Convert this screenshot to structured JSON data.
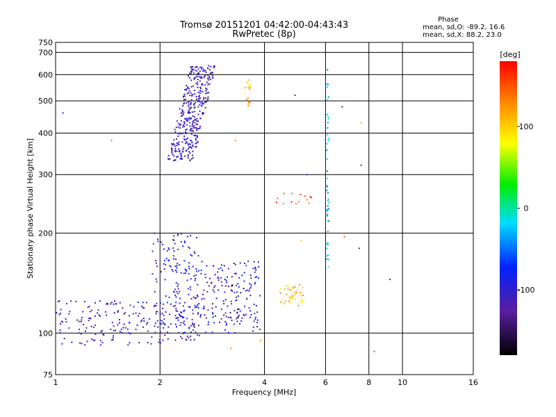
{
  "chart_data": {
    "type": "scatter",
    "title": "Tromsø 20151201 04:42:00-04:43:43",
    "subtitle": "RwPretec (8p)",
    "xlabel": "Frequency [MHz]",
    "ylabel": "Stationary phase Virtual Height [km]",
    "x_scale": "log",
    "y_scale": "log",
    "xlim": [
      1,
      16
    ],
    "ylim": [
      75,
      750
    ],
    "x_ticks": [
      "1",
      "2",
      "4",
      "6",
      "8",
      "10",
      "16"
    ],
    "y_ticks": [
      "75",
      "100",
      "200",
      "300",
      "400",
      "500",
      "600",
      "700"
    ],
    "grid": true,
    "stats": {
      "heading": "Phase",
      "line_o": "mean, sd,O: -89.2, 16.6",
      "line_x": "mean, sd,X:  88.2, 23.0"
    },
    "colorbar": {
      "label": "[deg]",
      "range": [
        -180,
        180
      ],
      "ticks": [
        "100",
        "0",
        "-100"
      ]
    },
    "clusters": [
      {
        "x": [
          2.1,
          2.9
        ],
        "y": [
          330,
          640
        ],
        "phase": -110,
        "n": 380,
        "shape": "blob"
      },
      {
        "x": [
          1.0,
          2.1
        ],
        "y": [
          92,
          125
        ],
        "phase": -105,
        "n": 160,
        "shape": "rect"
      },
      {
        "x": [
          1.9,
          2.6
        ],
        "y": [
          95,
          200
        ],
        "phase": -100,
        "n": 150,
        "shape": "rect"
      },
      {
        "x": [
          2.2,
          3.9
        ],
        "y": [
          100,
          165
        ],
        "phase": -95,
        "n": 200,
        "shape": "rect"
      },
      {
        "x": [
          3.0,
          3.7
        ],
        "y": [
          110,
          140
        ],
        "phase": -130,
        "n": 40,
        "shape": "rect"
      },
      {
        "x": [
          4.4,
          5.2
        ],
        "y": [
          120,
          140
        ],
        "phase": 110,
        "n": 40,
        "shape": "rect"
      },
      {
        "x": [
          3.5,
          3.65
        ],
        "y": [
          480,
          580
        ],
        "phase": 115,
        "n": 18,
        "shape": "rect"
      },
      {
        "x": [
          6.05,
          6.15
        ],
        "y": [
          150,
          630
        ],
        "phase": -20,
        "n": 50,
        "shape": "rect"
      },
      {
        "x": [
          4.3,
          5.6
        ],
        "y": [
          245,
          265
        ],
        "phase": 150,
        "n": 14,
        "shape": "rect"
      }
    ],
    "points": [
      {
        "x": 1.05,
        "y": 460,
        "phase": -110
      },
      {
        "x": 1.45,
        "y": 380,
        "phase": 140
      },
      {
        "x": 3.3,
        "y": 380,
        "phase": 130
      },
      {
        "x": 4.9,
        "y": 520,
        "phase": -120
      },
      {
        "x": 7.6,
        "y": 430,
        "phase": 110
      },
      {
        "x": 7.6,
        "y": 320,
        "phase": -120
      },
      {
        "x": 8.3,
        "y": 88,
        "phase": 150
      },
      {
        "x": 9.2,
        "y": 145,
        "phase": -110
      },
      {
        "x": 6.7,
        "y": 480,
        "phase": -110
      },
      {
        "x": 6.8,
        "y": 195,
        "phase": 160
      },
      {
        "x": 7.5,
        "y": 180,
        "phase": -110
      },
      {
        "x": 5.1,
        "y": 190,
        "phase": 100
      },
      {
        "x": 5.3,
        "y": 300,
        "phase": -100
      },
      {
        "x": 3.2,
        "y": 90,
        "phase": 130
      },
      {
        "x": 3.9,
        "y": 95,
        "phase": 120
      }
    ]
  }
}
